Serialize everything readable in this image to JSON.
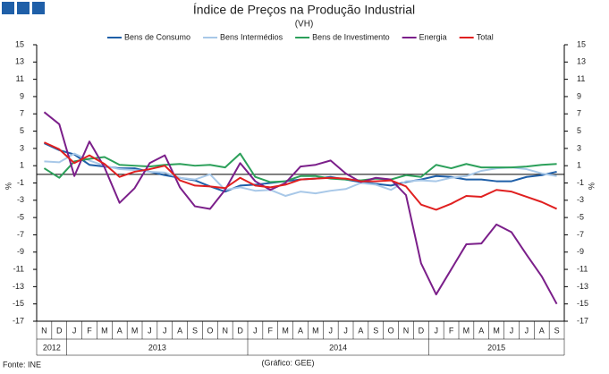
{
  "chart_data": {
    "type": "line",
    "title": "Índice de Preços na Produção Industrial",
    "subtitle": "(VH)",
    "ylabel": "%",
    "source": "Fonte: INE",
    "credit": "(Gráfico: GEE)",
    "categories": [
      "N",
      "D",
      "J",
      "F",
      "M",
      "A",
      "M",
      "J",
      "J",
      "A",
      "S",
      "O",
      "N",
      "D",
      "J",
      "F",
      "M",
      "A",
      "M",
      "J",
      "J",
      "A",
      "S",
      "O",
      "N",
      "D",
      "J",
      "F",
      "M",
      "A",
      "M",
      "J",
      "J",
      "A",
      "S"
    ],
    "years": [
      "2012",
      "2013",
      "2014",
      "2015"
    ],
    "ylim": [
      -17,
      15
    ],
    "yticks": [
      -17,
      -15,
      -13,
      -11,
      -9,
      -7,
      -5,
      -3,
      -1,
      1,
      3,
      5,
      7,
      9,
      11,
      13,
      15
    ],
    "legend": "top",
    "series": [
      {
        "name": "Bens de Consumo",
        "color": "#1f5fa8",
        "values": [
          3.6,
          2.8,
          2.3,
          1.1,
          0.9,
          0.7,
          0.7,
          0.3,
          -0.1,
          -0.4,
          -0.7,
          -1.4,
          -2.0,
          -1.3,
          -1.2,
          -1.0,
          -0.8,
          -0.6,
          -0.5,
          -0.3,
          -0.6,
          -0.9,
          -1.1,
          -1.3,
          -0.9,
          -0.6,
          -0.2,
          -0.3,
          -0.6,
          -0.6,
          -0.8,
          -0.8,
          -0.3,
          -0.1,
          0.3
        ]
      },
      {
        "name": "Bens Intermédios",
        "color": "#a8c8e8",
        "values": [
          1.5,
          1.4,
          2.4,
          1.6,
          1.0,
          0.6,
          0.5,
          0.3,
          0.2,
          -0.4,
          -0.6,
          0.0,
          -1.8,
          -1.5,
          -1.9,
          -1.8,
          -2.5,
          -2.0,
          -2.2,
          -1.9,
          -1.7,
          -1.0,
          -1.2,
          -1.8,
          -0.8,
          -0.7,
          -0.8,
          -0.4,
          -0.2,
          0.4,
          0.7,
          0.8,
          0.6,
          0.1,
          -0.2
        ]
      },
      {
        "name": "Bens de Investimento",
        "color": "#2ca05a",
        "values": [
          0.7,
          -0.4,
          1.5,
          1.8,
          2.0,
          1.1,
          1.0,
          0.9,
          1.1,
          1.2,
          1.0,
          1.1,
          0.8,
          2.4,
          -0.3,
          -0.9,
          -0.8,
          -0.2,
          -0.2,
          -0.5,
          -0.6,
          -0.7,
          -0.5,
          -0.6,
          -0.1,
          -0.3,
          1.1,
          0.7,
          1.2,
          0.8,
          0.8,
          0.8,
          0.9,
          1.1,
          1.2
        ]
      },
      {
        "name": "Energia",
        "color": "#7b1f8a",
        "values": [
          7.2,
          5.8,
          -0.2,
          3.8,
          0.8,
          -3.3,
          -1.6,
          1.3,
          2.2,
          -1.5,
          -3.7,
          -4.0,
          -1.8,
          1.3,
          -0.8,
          -1.8,
          -1.0,
          0.9,
          1.1,
          1.6,
          0.1,
          -0.9,
          -0.4,
          -0.6,
          -2.4,
          -10.3,
          -13.9,
          -11.0,
          -8.1,
          -8.0,
          -5.8,
          -6.7,
          -9.3,
          -11.8,
          -15.0
        ]
      },
      {
        "name": "Total",
        "color": "#e02020",
        "values": [
          3.7,
          2.9,
          1.3,
          2.2,
          1.2,
          -0.3,
          0.3,
          0.6,
          1.0,
          -0.7,
          -1.3,
          -1.4,
          -1.6,
          -0.4,
          -1.3,
          -1.5,
          -1.2,
          -0.6,
          -0.5,
          -0.4,
          -0.5,
          -0.8,
          -0.8,
          -0.7,
          -1.4,
          -3.5,
          -4.1,
          -3.4,
          -2.5,
          -2.6,
          -1.8,
          -2.0,
          -2.6,
          -3.2,
          -4.0
        ]
      }
    ]
  }
}
